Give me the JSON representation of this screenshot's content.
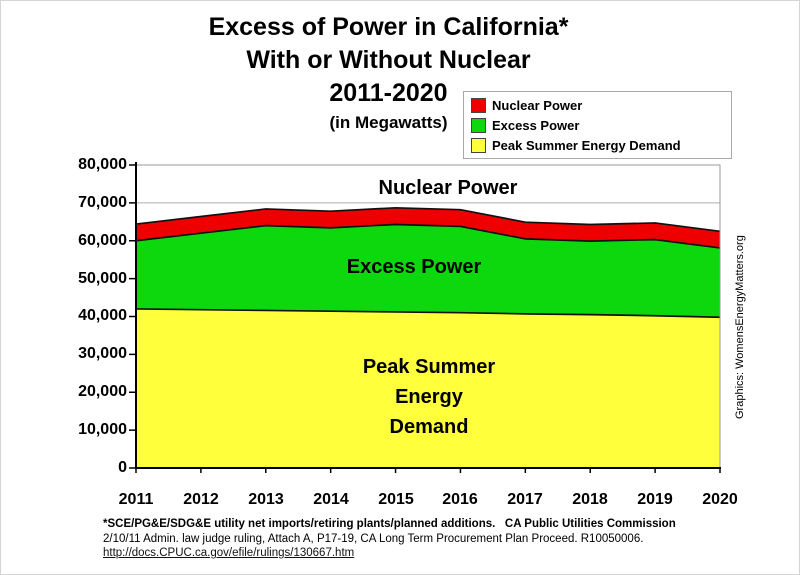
{
  "title": {
    "line1": "Excess of Power in California*",
    "line2": "With or Without Nuclear",
    "line3": "2011-2020",
    "line4": "(in Megawatts)"
  },
  "legend": {
    "items": [
      {
        "label": "Nuclear Power",
        "color": "#EE0000"
      },
      {
        "label": "Excess Power",
        "color": "#0DD80D"
      },
      {
        "label": "Peak Summer Energy Demand",
        "color": "#FFFF3C"
      }
    ]
  },
  "chart_data": {
    "type": "area",
    "stacked": true,
    "title": "Excess of Power in California* With or Without Nuclear 2011-2020 (in Megawatts)",
    "x": [
      2011,
      2012,
      2013,
      2014,
      2015,
      2016,
      2017,
      2018,
      2019,
      2020
    ],
    "xtick_labels": [
      "2011",
      "2012",
      "2013",
      "2014",
      "2015",
      "2016",
      "2017",
      "2018",
      "2019",
      "2020"
    ],
    "series": [
      {
        "name": "Peak Summer Energy Demand",
        "color": "#FFFF3C",
        "values": [
          42000,
          41800,
          41600,
          41400,
          41200,
          41000,
          40700,
          40500,
          40200,
          39800
        ]
      },
      {
        "name": "Excess Power",
        "color": "#0DD80D",
        "values": [
          18000,
          20200,
          22400,
          22000,
          23100,
          22800,
          19800,
          19400,
          20100,
          18300
        ]
      },
      {
        "name": "Nuclear Power",
        "color": "#EE0000",
        "values": [
          4400,
          4400,
          4400,
          4400,
          4400,
          4400,
          4400,
          4400,
          4400,
          4400
        ]
      }
    ],
    "stacked_totals": [
      64400,
      66400,
      68400,
      67800,
      68700,
      68200,
      64900,
      64300,
      64700,
      62500
    ],
    "ylim": [
      0,
      80000
    ],
    "ytick_step": 10000,
    "ytick_labels": [
      "80,000",
      "70,000",
      "60,000",
      "50,000",
      "40,000",
      "30,000",
      "20,000",
      "10,000",
      "0"
    ],
    "xlabel": "",
    "ylabel": "",
    "grid": "horizontal",
    "legend_position": "top-right",
    "area_labels": {
      "nuclear": "Nuclear Power",
      "excess": "Excess Power",
      "demand_line1": "Peak Summer",
      "demand_line2": "Energy",
      "demand_line3": "Demand"
    },
    "colors": {
      "grid": "#ADADAD",
      "border": "#9A9A9A",
      "axis": "#000000",
      "edge": "#111111"
    }
  },
  "credit": "Graphics: WomensEnergyMatters.org",
  "footnote": {
    "line1": "*SCE/PG&E/SDG&E utility net imports/retiring plants/planned additions.   CA Public Utilities Commission",
    "line2": "2/10/11 Admin. law judge ruling, Attach A, P17-19, CA Long Term Procurement Plan Proceed. R10050006.",
    "link": "http://docs.CPUC.ca.gov/efile/rulings/130667.htm"
  }
}
